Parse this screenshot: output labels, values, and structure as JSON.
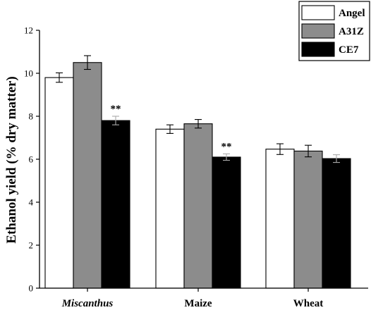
{
  "chart_data": {
    "type": "bar",
    "title": "",
    "xlabel": "",
    "ylabel": "Ethanol yield (% dry matter)",
    "ylim": [
      0,
      12
    ],
    "yticks": [
      0,
      2,
      4,
      6,
      8,
      10,
      12
    ],
    "categories": [
      "Miscanthus",
      "Maize",
      "Wheat"
    ],
    "category_italic": [
      true,
      false,
      false
    ],
    "series": [
      {
        "name": "Angel",
        "color": "#ffffff",
        "values": [
          9.8,
          7.4,
          6.47
        ],
        "errors": [
          0.22,
          0.2,
          0.25
        ]
      },
      {
        "name": "A31Z",
        "color": "#8c8c8c",
        "values": [
          10.5,
          7.65,
          6.38
        ],
        "errors": [
          0.32,
          0.2,
          0.27
        ]
      },
      {
        "name": "CE7",
        "color": "#000000",
        "values": [
          7.8,
          6.1,
          6.03
        ],
        "errors": [
          0.2,
          0.15,
          0.18
        ]
      }
    ],
    "annotations": [
      {
        "text": "**",
        "category": "Miscanthus",
        "series": "CE7"
      },
      {
        "text": "**",
        "category": "Maize",
        "series": "CE7"
      }
    ],
    "legend": "top-right",
    "grid": false
  }
}
